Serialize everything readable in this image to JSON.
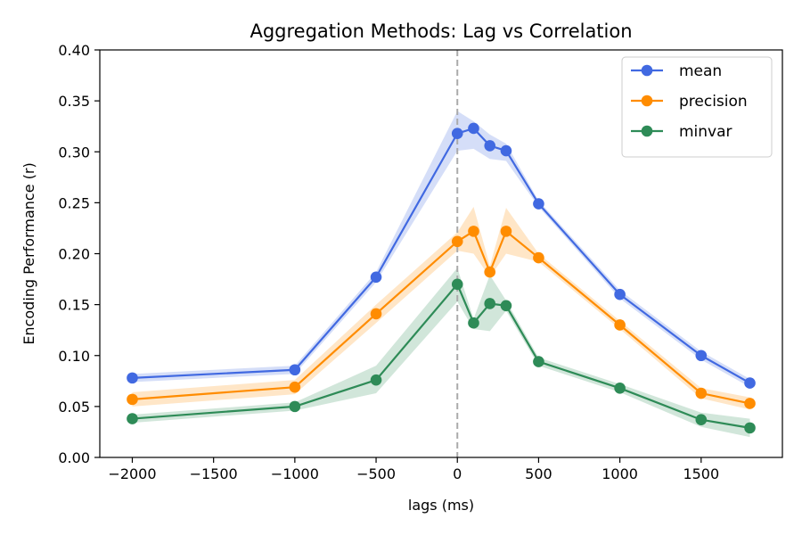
{
  "chart_data": {
    "type": "line",
    "title": "Aggregation Methods: Lag vs Correlation",
    "xlabel": "lags (ms)",
    "ylabel": "Encoding Performance (r)",
    "xlim": [
      -2200,
      2000
    ],
    "ylim": [
      0,
      0.4
    ],
    "xticks": [
      -2000,
      -1500,
      -1000,
      -500,
      0,
      500,
      1000,
      1500
    ],
    "xtick_labels": [
      "−2000",
      "−1500",
      "−1000",
      "−500",
      "0",
      "500",
      "1000",
      "1500"
    ],
    "yticks": [
      0,
      0.05,
      0.1,
      0.15,
      0.2,
      0.25,
      0.3,
      0.35,
      0.4
    ],
    "ytick_labels": [
      "0.00",
      "0.05",
      "0.10",
      "0.15",
      "0.20",
      "0.25",
      "0.30",
      "0.35",
      "0.40"
    ],
    "vline_x": 0,
    "grid": false,
    "legend_position": "top-right",
    "x": [
      -2000,
      -1000,
      -500,
      0,
      100,
      200,
      300,
      500,
      1000,
      1500,
      1800
    ],
    "series": [
      {
        "name": "mean",
        "color": "#4169E1",
        "values": [
          0.078,
          0.086,
          0.177,
          0.318,
          0.323,
          0.306,
          0.301,
          0.249,
          0.16,
          0.1,
          0.073
        ],
        "lower": [
          0.074,
          0.082,
          0.172,
          0.301,
          0.303,
          0.293,
          0.291,
          0.246,
          0.156,
          0.096,
          0.069
        ],
        "upper": [
          0.082,
          0.09,
          0.182,
          0.34,
          0.33,
          0.317,
          0.308,
          0.252,
          0.164,
          0.104,
          0.077
        ]
      },
      {
        "name": "precision",
        "color": "#FF8C00",
        "values": [
          0.057,
          0.069,
          0.141,
          0.212,
          0.222,
          0.182,
          0.222,
          0.196,
          0.13,
          0.063,
          0.053
        ],
        "lower": [
          0.05,
          0.062,
          0.132,
          0.203,
          0.2,
          0.177,
          0.2,
          0.192,
          0.126,
          0.058,
          0.047
        ],
        "upper": [
          0.064,
          0.076,
          0.15,
          0.221,
          0.246,
          0.188,
          0.245,
          0.2,
          0.134,
          0.068,
          0.059
        ]
      },
      {
        "name": "minvar",
        "color": "#2E8B57",
        "values": [
          0.038,
          0.05,
          0.076,
          0.17,
          0.132,
          0.151,
          0.149,
          0.094,
          0.068,
          0.037,
          0.029
        ],
        "lower": [
          0.034,
          0.046,
          0.063,
          0.153,
          0.126,
          0.124,
          0.144,
          0.09,
          0.064,
          0.03,
          0.02
        ],
        "upper": [
          0.042,
          0.054,
          0.09,
          0.186,
          0.136,
          0.179,
          0.154,
          0.098,
          0.072,
          0.044,
          0.038
        ]
      }
    ]
  }
}
